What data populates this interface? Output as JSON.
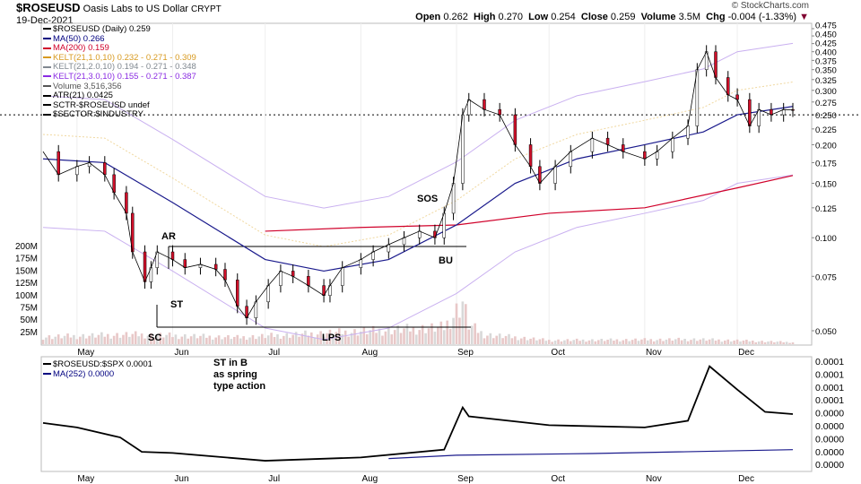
{
  "header": {
    "symbol": "$ROSEUSD",
    "name": "Oasis Labs to US Dollar",
    "exchange": "CRYPT",
    "date": "19-Dec-2021",
    "copyright": "© StockCharts.com",
    "open_label": "Open",
    "open": "0.262",
    "high_label": "High",
    "high": "0.270",
    "low_label": "Low",
    "low": "0.254",
    "close_label": "Close",
    "close": "0.259",
    "volume_label": "Volume",
    "volume": "3.5M",
    "chg_label": "Chg",
    "chg": "-0.004 (-1.33%)"
  },
  "legend": [
    {
      "text": "$ROSEUSD (Daily) 0.259",
      "color": "#000000"
    },
    {
      "text": "MA(50) 0.266",
      "color": "#000080"
    },
    {
      "text": "MA(200) 0.159",
      "color": "#d0002a"
    },
    {
      "text": "KELT(21,1.0,10) 0.232 - 0.271 - 0.309",
      "color": "#d89a20"
    },
    {
      "text": "KELT(21,2.0,10) 0.194 - 0.271 - 0.348",
      "color": "#808890"
    },
    {
      "text": "KELT(21,3.0,10) 0.155 - 0.271 - 0.387",
      "color": "#8a2be2"
    },
    {
      "text": "Volume 3,516,356",
      "color": "#555555"
    },
    {
      "text": "ATR(21) 0.0425",
      "color": "#000000"
    },
    {
      "text": "SCTR-$ROSEUSD undef",
      "color": "#000000"
    },
    {
      "text": "$SECTOR:$INDUSTRY",
      "color": "#000000"
    }
  ],
  "legend2": [
    {
      "text": "$ROSEUSD:$SPX 0.0001",
      "color": "#000000"
    },
    {
      "text": "MA(252) 0.0000",
      "color": "#000080"
    }
  ],
  "annotations": {
    "ar": "AR",
    "st": "ST",
    "sc": "SC",
    "st_in_b": [
      "ST in B",
      "as spring",
      "type action"
    ],
    "lps": "LPS",
    "sos": "SOS",
    "bu": "BU"
  },
  "chart_data": [
    {
      "type": "line",
      "title": "$ROSEUSD Daily",
      "yscale": "log",
      "ylim": [
        0.05,
        0.475
      ],
      "y_ticks": [
        "0.475",
        "0.450",
        "0.425",
        "0.400",
        "0.375",
        "0.350",
        "0.325",
        "0.300",
        "0.275",
        "0.250",
        "0.225",
        "0.200",
        "0.175",
        "0.150",
        "0.125",
        "0.100",
        "0.075",
        "0.050"
      ],
      "vol_ticks": [
        "200M",
        "175M",
        "150M",
        "125M",
        "100M",
        "75M",
        "50M",
        "25M"
      ],
      "x_ticks": [
        "May",
        "Jun",
        "Jul",
        "Aug",
        "Sep",
        "Oct",
        "Nov",
        "Dec"
      ],
      "close": [
        [
          "04-20",
          0.19
        ],
        [
          "04-25",
          0.16
        ],
        [
          "05-01",
          0.17
        ],
        [
          "05-05",
          0.175
        ],
        [
          "05-10",
          0.16
        ],
        [
          "05-13",
          0.14
        ],
        [
          "05-17",
          0.12
        ],
        [
          "05-19",
          0.09
        ],
        [
          "05-23",
          0.072
        ],
        [
          "05-25",
          0.08
        ],
        [
          "05-27",
          0.09
        ],
        [
          "06-01",
          0.085
        ],
        [
          "06-05",
          0.08
        ],
        [
          "06-10",
          0.082
        ],
        [
          "06-15",
          0.079
        ],
        [
          "06-18",
          0.073
        ],
        [
          "06-22",
          0.06
        ],
        [
          "06-25",
          0.055
        ],
        [
          "06-28",
          0.062
        ],
        [
          "07-02",
          0.07
        ],
        [
          "07-06",
          0.078
        ],
        [
          "07-10",
          0.075
        ],
        [
          "07-15",
          0.07
        ],
        [
          "07-20",
          0.065
        ],
        [
          "07-22",
          0.07
        ],
        [
          "07-26",
          0.08
        ],
        [
          "08-01",
          0.085
        ],
        [
          "08-05",
          0.09
        ],
        [
          "08-10",
          0.095
        ],
        [
          "08-15",
          0.1
        ],
        [
          "08-20",
          0.105
        ],
        [
          "08-25",
          0.1
        ],
        [
          "08-28",
          0.12
        ],
        [
          "08-31",
          0.15
        ],
        [
          "09-03",
          0.25
        ],
        [
          "09-05",
          0.28
        ],
        [
          "09-10",
          0.26
        ],
        [
          "09-15",
          0.25
        ],
        [
          "09-20",
          0.2
        ],
        [
          "09-25",
          0.17
        ],
        [
          "09-28",
          0.15
        ],
        [
          "10-03",
          0.17
        ],
        [
          "10-08",
          0.19
        ],
        [
          "10-15",
          0.21
        ],
        [
          "10-20",
          0.2
        ],
        [
          "10-25",
          0.19
        ],
        [
          "11-01",
          0.18
        ],
        [
          "11-05",
          0.19
        ],
        [
          "11-10",
          0.21
        ],
        [
          "11-15",
          0.23
        ],
        [
          "11-18",
          0.35
        ],
        [
          "11-21",
          0.4
        ],
        [
          "11-24",
          0.33
        ],
        [
          "11-28",
          0.29
        ],
        [
          "12-01",
          0.28
        ],
        [
          "12-05",
          0.23
        ],
        [
          "12-08",
          0.26
        ],
        [
          "12-12",
          0.25
        ],
        [
          "12-16",
          0.26
        ],
        [
          "12-19",
          0.259
        ]
      ],
      "ma50": [
        [
          "04-20",
          0.18
        ],
        [
          "05-10",
          0.175
        ],
        [
          "06-01",
          0.13
        ],
        [
          "07-01",
          0.085
        ],
        [
          "07-20",
          0.078
        ],
        [
          "08-10",
          0.085
        ],
        [
          "09-01",
          0.11
        ],
        [
          "09-20",
          0.15
        ],
        [
          "10-10",
          0.18
        ],
        [
          "11-01",
          0.2
        ],
        [
          "11-20",
          0.22
        ],
        [
          "12-01",
          0.25
        ],
        [
          "12-19",
          0.266
        ]
      ],
      "ma200": [
        [
          "07-01",
          0.105
        ],
        [
          "08-01",
          0.108
        ],
        [
          "09-01",
          0.11
        ],
        [
          "10-01",
          0.12
        ],
        [
          "11-01",
          0.125
        ],
        [
          "12-01",
          0.145
        ],
        [
          "12-19",
          0.159
        ]
      ],
      "volume_m": [
        [
          "04-20",
          15
        ],
        [
          "05-19",
          20
        ],
        [
          "06-22",
          14
        ],
        [
          "08-28",
          35
        ],
        [
          "08-31",
          60
        ],
        [
          "09-03",
          90
        ],
        [
          "09-05",
          40
        ],
        [
          "09-10",
          20
        ],
        [
          "10-01",
          8
        ],
        [
          "11-18",
          10
        ],
        [
          "12-19",
          4
        ]
      ]
    },
    {
      "type": "line",
      "title": "$ROSEUSD:$SPX",
      "units": "1e-5",
      "y_ticks": [
        "0.0001",
        "0.0001",
        "0.0001",
        "0.0001",
        "0.0000",
        "0.0000",
        "0.0000",
        "0.0000",
        "0.0000"
      ],
      "ratio": [
        [
          "04-20",
          4.2
        ],
        [
          "05-01",
          3.8
        ],
        [
          "05-15",
          2.9
        ],
        [
          "05-22",
          1.6
        ],
        [
          "06-01",
          1.5
        ],
        [
          "07-01",
          0.8
        ],
        [
          "08-01",
          1.1
        ],
        [
          "08-28",
          1.8
        ],
        [
          "09-03",
          5.6
        ],
        [
          "09-05",
          4.8
        ],
        [
          "10-01",
          4.0
        ],
        [
          "11-01",
          3.8
        ],
        [
          "11-15",
          4.4
        ],
        [
          "11-22",
          9.3
        ],
        [
          "12-01",
          7.2
        ],
        [
          "12-10",
          5.2
        ],
        [
          "12-19",
          5.0
        ]
      ],
      "ma252": [
        [
          "08-10",
          1.0
        ],
        [
          "09-01",
          1.3
        ],
        [
          "10-15",
          1.45
        ],
        [
          "12-19",
          1.8
        ]
      ]
    }
  ]
}
